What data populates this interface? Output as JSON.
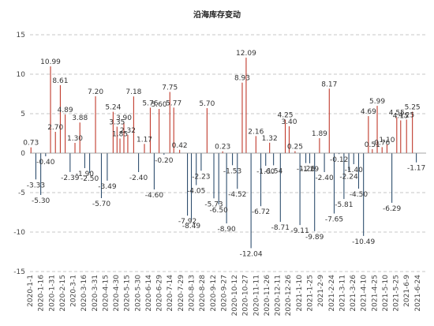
{
  "chart_data": {
    "type": "bar",
    "title": "沿海库存变动",
    "xlabel": "",
    "ylabel": "",
    "ylim": [
      -15,
      15
    ],
    "yticks": [
      -15,
      -10,
      -5,
      0,
      5,
      10,
      15
    ],
    "grid": "horizontal-dashed",
    "colors": {
      "positive": "#c0392b",
      "negative": "#2f4f6f",
      "grid": "#b5b5b5",
      "axis": "#888888"
    },
    "x_tick_labels": [
      "2020-1-1",
      "2020-1-16",
      "2020-1-31",
      "2020-2-15",
      "2020-3-1",
      "2020-3-16",
      "2020-3-31",
      "2020-4-15",
      "2020-4-30",
      "2020-5-15",
      "2020-5-30",
      "2020-6-14",
      "2020-6-29",
      "2020-7-14",
      "2020-7-29",
      "2020-8-13",
      "2020-8-28",
      "2020-9-12",
      "2020-9-27",
      "2020-10-12",
      "2020-10-27",
      "2020-11-11",
      "2020-11-26",
      "2020-12-11",
      "2020-12-26",
      "2021-1-10",
      "2021-1-25",
      "2021-2-9",
      "2021-2-24",
      "2021-3-11",
      "2021-3-26",
      "2021-4-10",
      "2021-4-25",
      "2021-5-10",
      "2021-5-25",
      "2021-6-9",
      "2021-6-24"
    ],
    "bars": [
      {
        "d": 1,
        "v": 0.73,
        "lbl": "0.73"
      },
      {
        "d": 6,
        "v": -3.33,
        "lbl": "-3.33"
      },
      {
        "d": 11,
        "v": -5.3,
        "lbl": "-5.30"
      },
      {
        "d": 16,
        "v": -0.4,
        "lbl": "-0.40"
      },
      {
        "d": 21,
        "v": 10.99,
        "lbl": "10.99"
      },
      {
        "d": 26,
        "v": 2.7,
        "lbl": "2.70"
      },
      {
        "d": 31,
        "v": 8.61,
        "lbl": "8.61"
      },
      {
        "d": 36,
        "v": 4.89,
        "lbl": "4.89"
      },
      {
        "d": 41,
        "v": -2.39,
        "lbl": "-2.39"
      },
      {
        "d": 46,
        "v": 1.3,
        "lbl": "1.30"
      },
      {
        "d": 51,
        "v": 3.88,
        "lbl": "3.88"
      },
      {
        "d": 56,
        "v": -1.9,
        "lbl": "-1.90"
      },
      {
        "d": 61,
        "v": -2.5,
        "lbl": "-2.50"
      },
      {
        "d": 67,
        "v": 7.2,
        "lbl": "7.20"
      },
      {
        "d": 73,
        "v": -5.7,
        "lbl": "-5.70"
      },
      {
        "d": 79,
        "v": -3.49,
        "lbl": "-3.49"
      },
      {
        "d": 85,
        "v": 5.24,
        "lbl": "5.24"
      },
      {
        "d": 89,
        "v": 3.35,
        "lbl": "3.35"
      },
      {
        "d": 92,
        "v": 1.85,
        "lbl": "1.85"
      },
      {
        "d": 96,
        "v": 3.9,
        "lbl": "3.90"
      },
      {
        "d": 100,
        "v": 2.32,
        "lbl": "2.32"
      },
      {
        "d": 106,
        "v": 7.18,
        "lbl": "7.18"
      },
      {
        "d": 111,
        "v": -2.4,
        "lbl": "-2.40"
      },
      {
        "d": 117,
        "v": 1.17,
        "lbl": "1.17"
      },
      {
        "d": 123,
        "v": 5.76,
        "lbl": "5.76"
      },
      {
        "d": 127,
        "v": -4.6,
        "lbl": "-4.60"
      },
      {
        "d": 132,
        "v": 5.6,
        "lbl": "5.60"
      },
      {
        "d": 137,
        "v": -0.2,
        "lbl": "-0.20"
      },
      {
        "d": 143,
        "v": 7.75,
        "lbl": "7.75"
      },
      {
        "d": 147,
        "v": 5.77,
        "lbl": "5.77"
      },
      {
        "d": 153,
        "v": 0.42,
        "lbl": "0.42"
      },
      {
        "d": 161,
        "v": -7.92,
        "lbl": "-7.92"
      },
      {
        "d": 165,
        "v": -8.49,
        "lbl": "-8.49"
      },
      {
        "d": 170,
        "v": -4.05,
        "lbl": "-4.05"
      },
      {
        "d": 175,
        "v": -2.23,
        "lbl": "-2.23"
      },
      {
        "d": 181,
        "v": 5.7,
        "lbl": "5.70"
      },
      {
        "d": 188,
        "v": -5.73,
        "lbl": "-5.73"
      },
      {
        "d": 193,
        "v": -6.5,
        "lbl": "-6.50"
      },
      {
        "d": 197,
        "v": 0.23,
        "lbl": "0.23"
      },
      {
        "d": 201,
        "v": -8.9,
        "lbl": "-8.90"
      },
      {
        "d": 207,
        "v": -1.53,
        "lbl": "-1.53"
      },
      {
        "d": 212,
        "v": -4.52,
        "lbl": "-4.52"
      },
      {
        "d": 217,
        "v": 8.93,
        "lbl": "8.93"
      },
      {
        "d": 221,
        "v": 12.09,
        "lbl": "12.09"
      },
      {
        "d": 226,
        "v": -12.04,
        "lbl": "-12.04"
      },
      {
        "d": 231,
        "v": 2.16,
        "lbl": "2.16"
      },
      {
        "d": 236,
        "v": -6.72,
        "lbl": "-6.72"
      },
      {
        "d": 241,
        "v": -1.6,
        "lbl": "-1.60"
      },
      {
        "d": 245,
        "v": 1.32,
        "lbl": "1.32"
      },
      {
        "d": 249,
        "v": -1.54,
        "lbl": "-1.54"
      },
      {
        "d": 256,
        "v": -8.71,
        "lbl": "-8.71"
      },
      {
        "d": 261,
        "v": 4.25,
        "lbl": "4.25"
      },
      {
        "d": 265,
        "v": 3.4,
        "lbl": "3.40"
      },
      {
        "d": 271,
        "v": 0.25,
        "lbl": "0.25"
      },
      {
        "d": 276,
        "v": -9.11,
        "lbl": "-9.11"
      },
      {
        "d": 282,
        "v": -1.26,
        "lbl": "-1.26"
      },
      {
        "d": 286,
        "v": -1.29,
        "lbl": "-1.29"
      },
      {
        "d": 291,
        "v": -9.89,
        "lbl": "-9.89"
      },
      {
        "d": 296,
        "v": 1.89,
        "lbl": "1.89"
      },
      {
        "d": 301,
        "v": -2.4,
        "lbl": "-2.40"
      },
      {
        "d": 306,
        "v": 8.17,
        "lbl": "8.17"
      },
      {
        "d": 311,
        "v": -7.65,
        "lbl": "-7.65"
      },
      {
        "d": 316,
        "v": -0.12,
        "lbl": "-0.12"
      },
      {
        "d": 321,
        "v": -5.81,
        "lbl": "-5.81"
      },
      {
        "d": 326,
        "v": -2.24,
        "lbl": "-2.24"
      },
      {
        "d": 331,
        "v": -1.4,
        "lbl": "-1.40"
      },
      {
        "d": 336,
        "v": -4.5,
        "lbl": "-4.50"
      },
      {
        "d": 341,
        "v": -10.49,
        "lbl": "-10.49"
      },
      {
        "d": 346,
        "v": 4.69,
        "lbl": "4.69"
      },
      {
        "d": 350,
        "v": 0.51,
        "lbl": "0.51"
      },
      {
        "d": 355,
        "v": 5.99,
        "lbl": "5.99"
      },
      {
        "d": 360,
        "v": 0.76,
        "lbl": "0.76"
      },
      {
        "d": 365,
        "v": 1.1,
        "lbl": "1.10"
      },
      {
        "d": 370,
        "v": -6.29,
        "lbl": "-6.29"
      },
      {
        "d": 375,
        "v": 4.55,
        "lbl": "4.55"
      },
      {
        "d": 379,
        "v": 4.15,
        "lbl": "4.15"
      },
      {
        "d": 385,
        "v": 4.25,
        "lbl": "4.25"
      },
      {
        "d": 391,
        "v": 5.25,
        "lbl": "5.25"
      },
      {
        "d": 395,
        "v": -1.17,
        "lbl": "-1.17"
      }
    ]
  }
}
